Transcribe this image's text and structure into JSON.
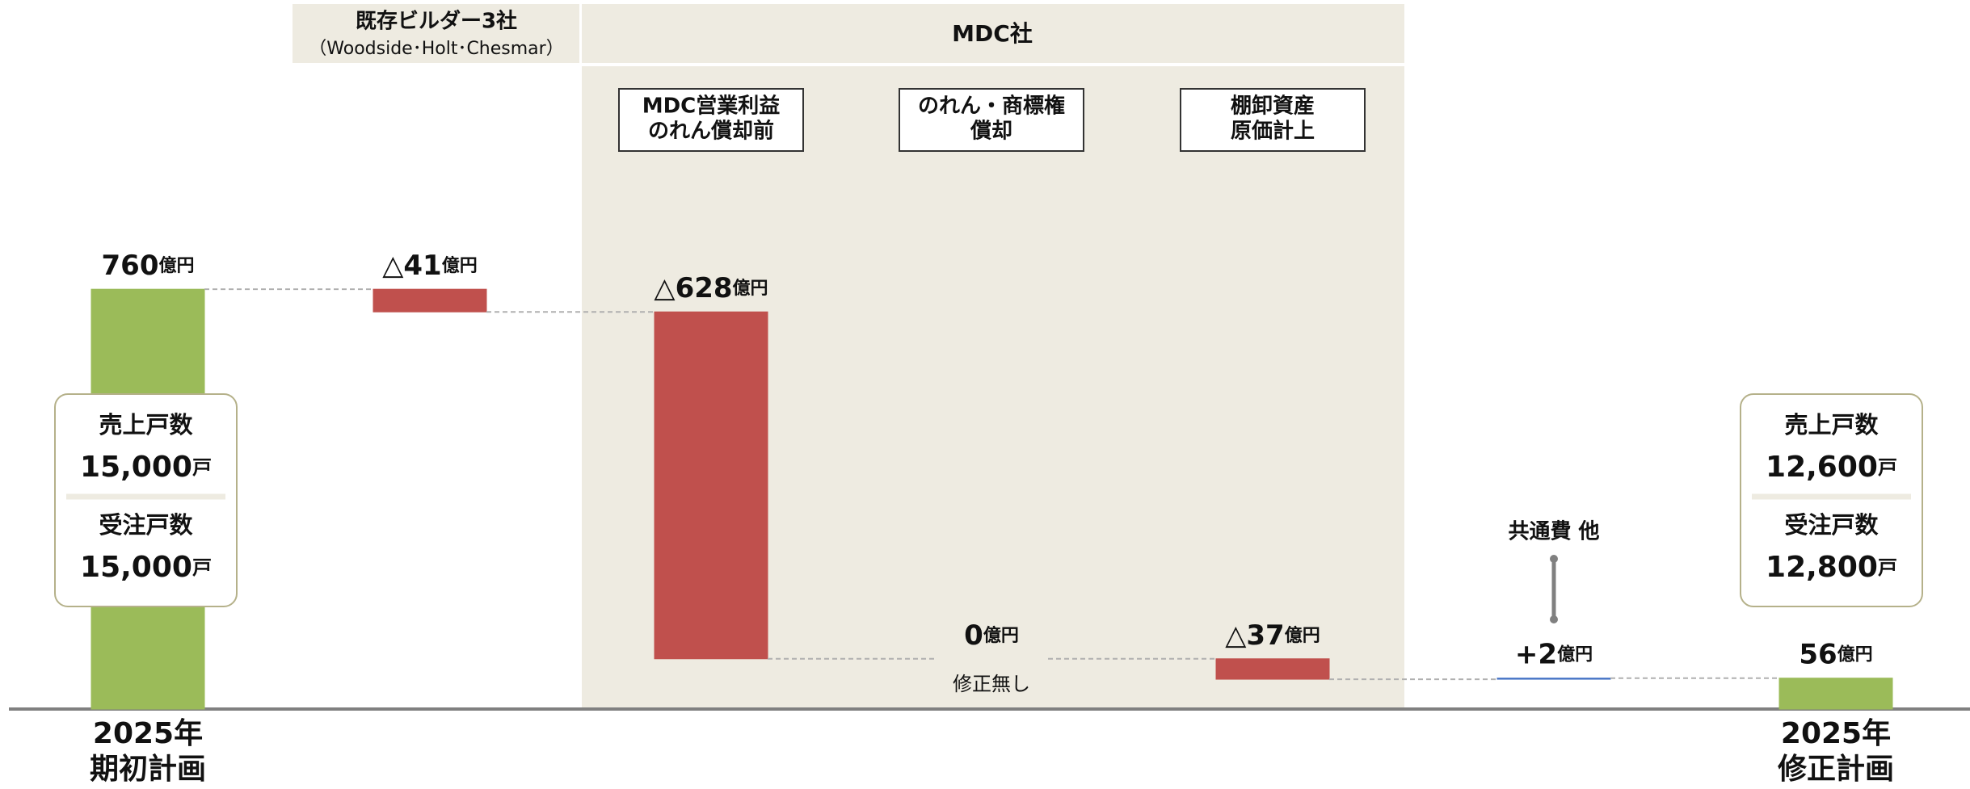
{
  "chart_data": {
    "type": "waterfall",
    "categories": [
      [
        "2025年",
        "期初計画"
      ],
      null,
      [
        "MDC営業利益",
        "のれん償却前"
      ],
      [
        "のれん・商標権",
        "償却"
      ],
      [
        "棚卸資産",
        "原価計上"
      ],
      [
        "共通費 他"
      ],
      [
        "2025年",
        "修正計画"
      ]
    ],
    "values": [
      760,
      -41,
      -628,
      0,
      -37,
      2,
      56
    ],
    "value_labels": [
      "760",
      "△41",
      "△628",
      "0",
      "△37",
      "+2",
      "56"
    ],
    "unit": "億円",
    "is_total": [
      true,
      false,
      false,
      false,
      false,
      false,
      true
    ],
    "colors": {
      "total": "#9bbb59",
      "decrease": "#c0504d",
      "increase": "#4472c4"
    },
    "ylim": [
      0,
      1000
    ],
    "groups": [
      {
        "label": "既存ビルダー3社",
        "sublabel": "（Woodside･Holt･Chesmar）"
      },
      {
        "label": "MDC社"
      }
    ],
    "note": "修正無し",
    "info_boxes": [
      [
        {
          "label": "売上戸数",
          "value": "15,000",
          "unit": "戸"
        },
        {
          "label": "受注戸数",
          "value": "15,000",
          "unit": "戸"
        }
      ],
      [
        {
          "label": "売上戸数",
          "value": "12,600",
          "unit": "戸"
        },
        {
          "label": "受注戸数",
          "value": "12,800",
          "unit": "戸"
        }
      ]
    ]
  }
}
